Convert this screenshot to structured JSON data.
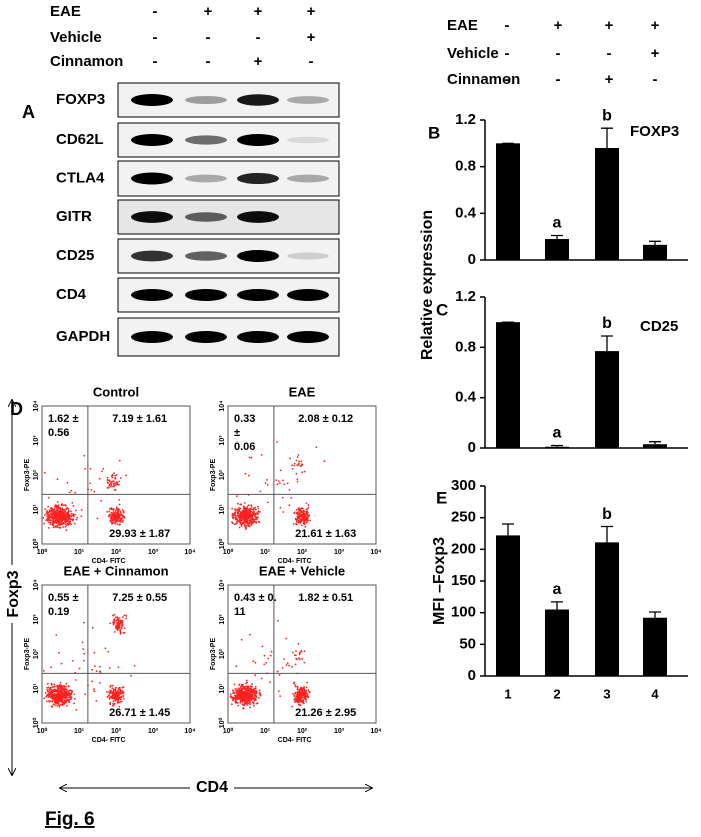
{
  "panel_letters": {
    "a": "A",
    "b": "B",
    "c": "C",
    "d": "D",
    "e": "E"
  },
  "treatments_left": [
    {
      "label": "EAE",
      "signs": [
        "-",
        "+",
        "+",
        "+"
      ]
    },
    {
      "label": "Vehicle",
      "signs": [
        "-",
        "-",
        "-",
        "+"
      ]
    },
    {
      "label": "Cinnamon",
      "signs": [
        "-",
        "-",
        "+",
        "-"
      ]
    }
  ],
  "treatments_right": [
    {
      "label": "EAE",
      "signs": [
        "-",
        "+",
        "+",
        "+"
      ]
    },
    {
      "label": "Vehicle",
      "signs": [
        "-",
        "-",
        "-",
        "+"
      ]
    },
    {
      "label": "Cinnamon",
      "signs": [
        "-",
        "-",
        "+",
        "-"
      ]
    }
  ],
  "blots": [
    "FOXP3",
    "CD62L",
    "CTLA4",
    "GITR",
    "CD25",
    "CD4",
    "GAPDH"
  ],
  "shared_ylabel": "Relative expression",
  "chart_data": [
    {
      "type": "bar",
      "title": "FOXP3",
      "categories": [
        null,
        null,
        null,
        null
      ],
      "values": [
        1.0,
        0.18,
        0.96,
        0.13
      ],
      "errors": [
        0.0,
        0.03,
        0.17,
        0.03
      ],
      "bar_labels": [
        null,
        "a",
        "b",
        null
      ],
      "color": "#000000",
      "ylim": [
        0,
        1.2
      ],
      "yticks": [
        0,
        0.4,
        0.8,
        1.2
      ]
    },
    {
      "type": "bar",
      "title": "CD25",
      "categories": [
        null,
        null,
        null,
        null
      ],
      "values": [
        1.0,
        0.01,
        0.77,
        0.03
      ],
      "errors": [
        0.0,
        0.01,
        0.12,
        0.02
      ],
      "bar_labels": [
        null,
        "a",
        "b",
        null
      ],
      "color": "#000000",
      "ylim": [
        0,
        1.2
      ],
      "yticks": [
        0,
        0.4,
        0.8,
        1.2
      ]
    },
    {
      "type": "bar",
      "ylabel": "MFI –Foxp3",
      "categories": [
        "1",
        "2",
        "3",
        "4"
      ],
      "values": [
        222,
        105,
        211,
        92
      ],
      "errors": [
        18,
        12,
        25,
        9
      ],
      "bar_labels": [
        null,
        "a",
        "b",
        null
      ],
      "color": "#000000",
      "ylim": [
        0,
        300
      ],
      "yticks": [
        0,
        50,
        100,
        150,
        200,
        250,
        300
      ]
    }
  ],
  "flow": {
    "ylabel": "Foxp3-PE",
    "xlabel": "CD4- FITC",
    "ticks": [
      "10⁰",
      "10¹",
      "10²",
      "10³",
      "10⁴"
    ],
    "plots": [
      {
        "title": "Control",
        "ul": [
          "1.62 ±",
          "0.56"
        ],
        "ur": "7.19 ± 1.61",
        "lr": "29.93 ± 1.87"
      },
      {
        "title": "EAE",
        "ul": [
          "0.33",
          "±",
          "0.06"
        ],
        "ur": "2.08 ± 0.12",
        "lr": "21.61 ± 1.63"
      },
      {
        "title": "EAE + Cinnamon",
        "ul": [
          "0.55 ±",
          "0.19"
        ],
        "ur": "7.25 ± 0.55",
        "lr": "26.71 ± 1.45"
      },
      {
        "title": "EAE + Vehicle",
        "ul": [
          "0.43 ± 0.",
          "11"
        ],
        "ur": "1.82 ± 0.51",
        "lr": "21.26 ± 2.95"
      }
    ]
  },
  "big_ylabel": "Foxp3",
  "big_xlabel": "CD4",
  "caption": "Fig. 6"
}
